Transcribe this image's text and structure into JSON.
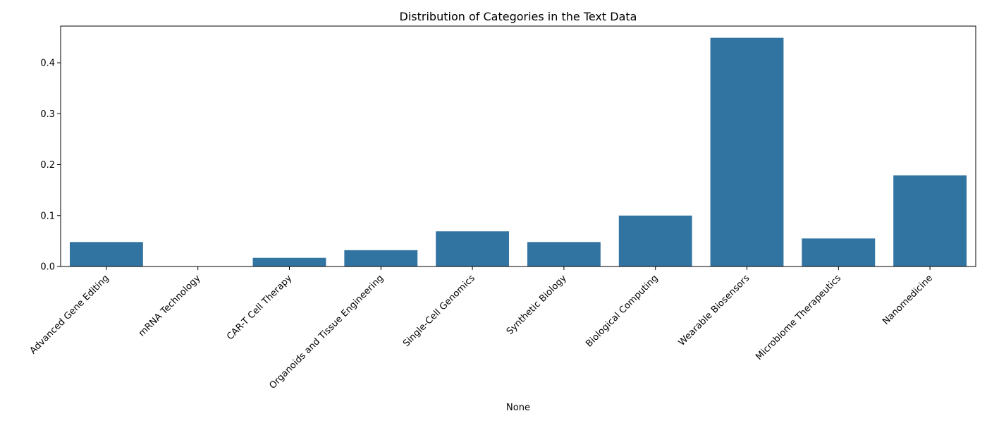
{
  "chart_data": {
    "type": "bar",
    "title": "Distribution of Categories in the Text Data",
    "xlabel": "None",
    "ylabel": "",
    "categories": [
      "Advanced Gene Editing",
      "mRNA Technology",
      "CAR-T Cell Therapy",
      "Organoids and Tissue Engineering",
      "Single-Cell Genomics",
      "Synthetic Biology",
      "Biological Computing",
      "Wearable Biosensors",
      "Microbiome Therapeutics",
      "Nanomedicine"
    ],
    "values": [
      0.048,
      0.0,
      0.017,
      0.032,
      0.069,
      0.048,
      0.1,
      0.449,
      0.055,
      0.179
    ],
    "ylim": [
      0,
      0.472
    ],
    "yticks": [
      0.0,
      0.1,
      0.2,
      0.3,
      0.4
    ],
    "ytick_labels": [
      "0.0",
      "0.1",
      "0.2",
      "0.3",
      "0.4"
    ],
    "bar_color": "#3274a1",
    "grid": false,
    "legend": "none"
  }
}
